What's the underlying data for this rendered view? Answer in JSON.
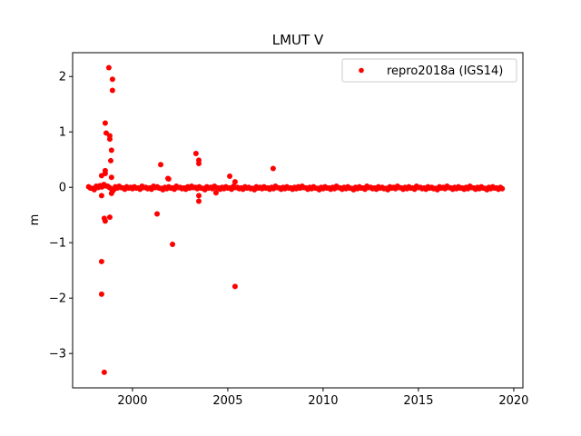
{
  "chart_data": {
    "type": "scatter",
    "title": "LMUT V",
    "xlabel": "",
    "ylabel": "m",
    "xlim": [
      1996.86,
      2020.48
    ],
    "ylim": [
      -3.62,
      2.43
    ],
    "xticks": [
      2000,
      2005,
      2010,
      2015,
      2020
    ],
    "yticks": [
      -3,
      -2,
      -1,
      0,
      1,
      2
    ],
    "grid": false,
    "legend": {
      "position": "top-right",
      "entries": [
        "repro2018a (IGS14)"
      ]
    },
    "colors": {
      "series": "#ff0000"
    },
    "series": [
      {
        "name": "repro2018a (IGS14)",
        "x": [
          1997.7,
          1997.9,
          1998.1,
          1998.3,
          1998.5,
          1998.7,
          1998.9,
          1999.1,
          1999.3,
          1999.5,
          1999.7,
          1999.9,
          2000.1,
          2000.3,
          2000.5,
          2000.7,
          2000.9,
          2001.1,
          2001.3,
          2001.5,
          2001.7,
          2001.9,
          2002.1,
          2002.3,
          2002.5,
          2002.7,
          2002.9,
          2003.1,
          2003.3,
          2003.5,
          2003.7,
          2003.9,
          2004.1,
          2004.3,
          2004.5,
          2004.7,
          2004.9,
          2005.1,
          2005.3,
          2005.5,
          2005.7,
          2005.9,
          2006.1,
          2006.3,
          2006.5,
          2006.7,
          2006.9,
          2007.1,
          2007.3,
          2007.5,
          2007.7,
          2007.9,
          2008.1,
          2008.3,
          2008.5,
          2008.7,
          2008.9,
          2009.1,
          2009.3,
          2009.5,
          2009.7,
          2009.9,
          2010.1,
          2010.3,
          2010.5,
          2010.7,
          2010.9,
          2011.1,
          2011.3,
          2011.5,
          2011.7,
          2011.9,
          2012.1,
          2012.3,
          2012.5,
          2012.7,
          2012.9,
          2013.1,
          2013.3,
          2013.5,
          2013.7,
          2013.9,
          2014.1,
          2014.3,
          2014.5,
          2014.7,
          2014.9,
          2015.1,
          2015.3,
          2015.5,
          2015.7,
          2015.9,
          2016.1,
          2016.3,
          2016.5,
          2016.7,
          2016.9,
          2017.1,
          2017.3,
          2017.5,
          2017.7,
          2017.9,
          2018.1,
          2018.3,
          2018.5,
          2018.7,
          2018.9,
          2019.1,
          2019.3,
          1998.76,
          1998.95,
          1998.95,
          1998.57,
          1998.62,
          1998.81,
          1998.81,
          1998.9,
          1998.86,
          1998.57,
          1998.57,
          1998.38,
          1998.9,
          2003.33,
          2003.48,
          2003.48,
          2001.48,
          2001.86,
          2001.9,
          2007.38,
          2005.1,
          2005.38,
          1998.38,
          1998.9,
          2003.48,
          2003.48,
          2004.38,
          2001.29,
          1998.52,
          1998.57,
          1998.81,
          2002.1,
          1998.38,
          1998.38,
          2005.38,
          1998.52
        ],
        "y": [
          0.01,
          -0.02,
          0.02,
          0.03,
          0.05,
          0.02,
          -0.03,
          0.01,
          0.02,
          -0.01,
          0.01,
          0.0,
          0.01,
          -0.01,
          0.02,
          0.0,
          -0.01,
          0.02,
          0.01,
          -0.02,
          0.0,
          0.01,
          -0.01,
          0.02,
          0.0,
          -0.01,
          0.01,
          0.02,
          0.0,
          0.01,
          -0.02,
          0.01,
          0.0,
          0.02,
          -0.01,
          0.0,
          0.01,
          -0.01,
          0.02,
          0.0,
          -0.01,
          0.01,
          0.0,
          -0.02,
          0.01,
          0.0,
          0.01,
          -0.01,
          0.0,
          0.02,
          -0.01,
          0.0,
          0.01,
          -0.01,
          0.0,
          0.01,
          0.02,
          -0.01,
          0.0,
          0.01,
          -0.02,
          0.0,
          0.01,
          -0.01,
          0.0,
          0.02,
          -0.01,
          0.0,
          0.01,
          -0.02,
          0.0,
          0.01,
          -0.01,
          0.02,
          0.0,
          -0.01,
          0.01,
          0.0,
          -0.02,
          0.01,
          0.0,
          0.02,
          -0.01,
          0.0,
          0.01,
          -0.01,
          0.02,
          0.0,
          -0.01,
          0.01,
          0.0,
          -0.02,
          0.01,
          0.0,
          0.02,
          -0.01,
          0.0,
          0.01,
          -0.01,
          0.0,
          0.02,
          -0.01,
          0.0,
          0.01,
          -0.02,
          0.0,
          0.01,
          -0.01,
          0.0,
          2.16,
          1.95,
          1.75,
          1.16,
          0.98,
          0.93,
          0.87,
          0.67,
          0.48,
          0.3,
          0.25,
          0.21,
          0.18,
          0.61,
          0.49,
          0.43,
          0.41,
          0.16,
          0.15,
          0.34,
          0.2,
          0.1,
          -0.15,
          -0.11,
          -0.15,
          -0.25,
          -0.1,
          -0.48,
          -0.56,
          -0.61,
          -0.54,
          -1.03,
          -1.34,
          -1.93,
          -1.79,
          -3.34
        ]
      }
    ]
  }
}
